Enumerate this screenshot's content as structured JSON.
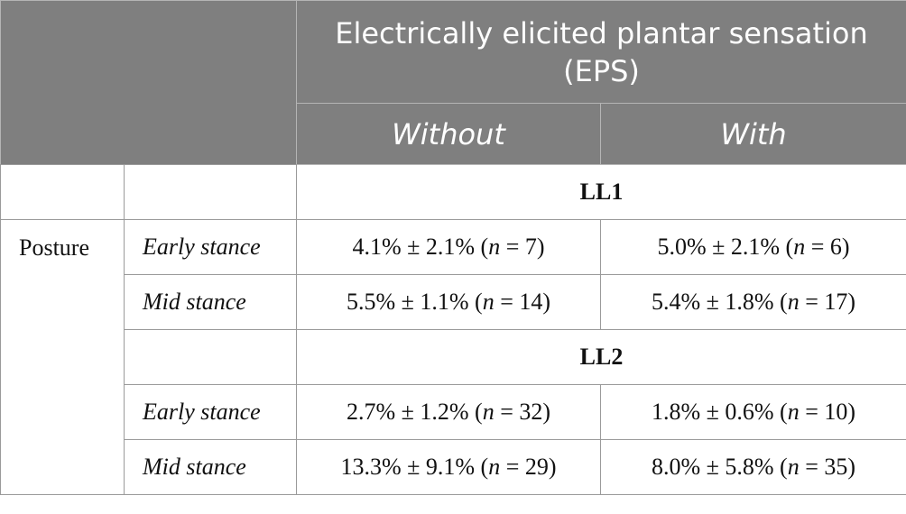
{
  "table": {
    "header": {
      "title": "Electrically elicited plantar sensation (EPS)",
      "columns": [
        "Without",
        "With"
      ]
    },
    "row_label": "Posture",
    "groups": [
      {
        "label": "LL1",
        "rows": [
          {
            "label": "Early stance",
            "cells": [
              [
                "4.1% ± 2.1% (",
                "n",
                " = 7)"
              ],
              [
                "5.0% ± 2.1% (",
                "n",
                " = 6)"
              ]
            ]
          },
          {
            "label": "Mid stance",
            "cells": [
              [
                "5.5% ± 1.1% (",
                "n",
                " = 14)"
              ],
              [
                "5.4% ± 1.8% (",
                "n",
                " = 17)"
              ]
            ]
          }
        ]
      },
      {
        "label": "LL2",
        "rows": [
          {
            "label": "Early stance",
            "cells": [
              [
                "2.7% ± 1.2% (",
                "n",
                " = 32)"
              ],
              [
                "1.8% ± 0.6% (",
                "n",
                " = 10)"
              ]
            ]
          },
          {
            "label": "Mid stance",
            "cells": [
              [
                "13.3% ± 9.1% (",
                "n",
                " = 29)"
              ],
              [
                "8.0% ± 5.8% (",
                "n",
                " = 35)"
              ]
            ]
          }
        ]
      }
    ]
  }
}
